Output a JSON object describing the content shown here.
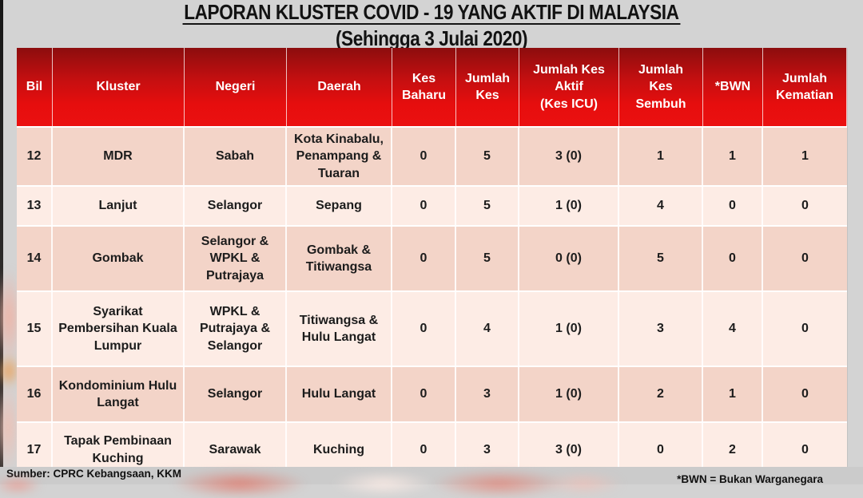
{
  "title": {
    "line1": "LAPORAN KLUSTER COVID - 19 YANG AKTIF DI MALAYSIA",
    "line2": "(Sehingga 3 Julai 2020)"
  },
  "table": {
    "columns": [
      {
        "key": "bil",
        "label": "Bil"
      },
      {
        "key": "kluster",
        "label": "Kluster"
      },
      {
        "key": "negeri",
        "label": "Negeri"
      },
      {
        "key": "daerah",
        "label": "Daerah"
      },
      {
        "key": "kes-baharu",
        "label": "Kes\nBaharu"
      },
      {
        "key": "jumlah-kes",
        "label": "Jumlah\nKes"
      },
      {
        "key": "jumlah-kes-aktif",
        "label": "Jumlah Kes\nAktif\n(Kes ICU)"
      },
      {
        "key": "jumlah-kes-sembuh",
        "label": "Jumlah\nKes\nSembuh"
      },
      {
        "key": "bwn",
        "label": "*BWN"
      },
      {
        "key": "jumlah-kematian",
        "label": "Jumlah\nKematian"
      }
    ],
    "rows": [
      {
        "cells": [
          "12",
          "MDR",
          "Sabah",
          "Kota Kinabalu, Penampang & Tuaran",
          "0",
          "5",
          "3 (0)",
          "1",
          "1",
          "1"
        ]
      },
      {
        "cells": [
          "13",
          "Lanjut",
          "Selangor",
          "Sepang",
          "0",
          "5",
          "1 (0)",
          "4",
          "0",
          "0"
        ]
      },
      {
        "cells": [
          "14",
          "Gombak",
          "Selangor & WPKL & Putrajaya",
          "Gombak & Titiwangsa",
          "0",
          "5",
          "0 (0)",
          "5",
          "0",
          "0"
        ]
      },
      {
        "cells": [
          "15",
          "Syarikat Pembersihan Kuala Lumpur",
          "WPKL & Putrajaya & Selangor",
          "Titiwangsa & Hulu Langat",
          "0",
          "4",
          "1 (0)",
          "3",
          "4",
          "0"
        ]
      },
      {
        "cells": [
          "16",
          "Kondominium Hulu Langat",
          "Selangor",
          "Hulu Langat",
          "0",
          "3",
          "1 (0)",
          "2",
          "1",
          "0"
        ]
      },
      {
        "cells": [
          "17",
          "Tapak Pembinaan Kuching",
          "Sarawak",
          "Kuching",
          "0",
          "3",
          "3 (0)",
          "0",
          "2",
          "0"
        ]
      }
    ]
  },
  "footer": {
    "source": "Sumber: CPRC Kebangsaan, KKM",
    "note": "*BWN = Bukan Warganegara"
  },
  "colors": {
    "header_red_top": "#8c0d0e",
    "header_red_bottom": "#eb1010",
    "row_dark": "#f3d4c8",
    "row_light": "#fdece5",
    "slide_gray": "#d3d3d3",
    "footer_gray": "#cbcbcb",
    "header_text": "#ffffff",
    "body_text": "#1c1c1c"
  }
}
